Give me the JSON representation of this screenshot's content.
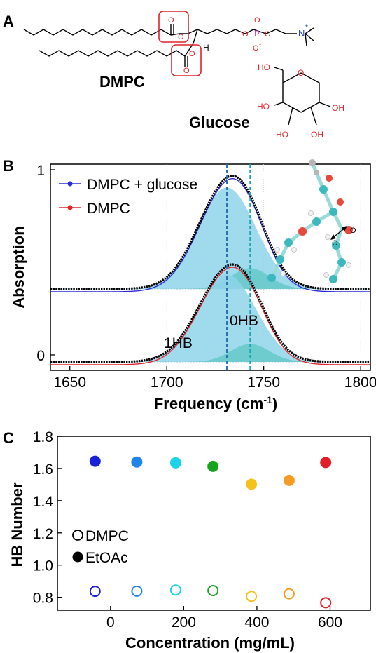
{
  "panels": {
    "a": "A",
    "b": "B",
    "c": "C"
  },
  "molecules": {
    "dmpc_name": "DMPC",
    "glucose_name": "Glucose",
    "h_label": "H",
    "n_label": "N",
    "n_charge": "+",
    "p_label": "P",
    "o_label": "O",
    "o_minus": "O",
    "minus": "-",
    "ho_1": "HO",
    "ho_2": "HO",
    "ho_3": "HO",
    "oh_1": "OH",
    "oh_2": "OH",
    "oh_3": "OH",
    "ring_o": "O",
    "ester_o1": "O",
    "ester_o2": "O",
    "ester_o3": "O",
    "ester_o4": "O"
  },
  "colors": {
    "blue_fit": "#2a2ad6",
    "red_fit": "#e0242a",
    "fill_light": "#8fd3ea",
    "fill_teal": "#45bfb5",
    "dash_blue": "#2a6fb0",
    "dash_teal": "#1fa3b0",
    "ester_box": "#e0242a"
  },
  "chart_data": [
    {
      "type": "line",
      "panel": "B",
      "xlabel_main": "Frequency (cm",
      "xlabel_sup": "-1",
      "xlabel_close": ")",
      "ylabel": "Absorption",
      "xlim": [
        1640,
        1805
      ],
      "x_ticks": [
        1650,
        1700,
        1750,
        1800
      ],
      "y_ticks": [
        0,
        1
      ],
      "series": [
        {
          "name": "DMPC + glucose",
          "color": "#2a2ad6"
        },
        {
          "name": "DMPC",
          "color": "#e0242a"
        }
      ],
      "components": [
        {
          "label": "1HB",
          "center": 1731,
          "width": 15,
          "amplitude": 0.83
        },
        {
          "label": "0HB",
          "center": 1743,
          "width": 10,
          "amplitude": 0.17
        }
      ],
      "dashed_lines": [
        1731,
        1743
      ],
      "grid": true,
      "legend": "top-left"
    },
    {
      "type": "scatter",
      "panel": "C",
      "xlabel": "Concentration (mg/mL)",
      "ylabel": "HB Number",
      "xlim": [
        -145,
        710
      ],
      "ylim": [
        0.72,
        1.8
      ],
      "x_ticks": [
        0,
        200,
        400,
        600
      ],
      "y_ticks": [
        0.8,
        1.0,
        1.2,
        1.4,
        1.6,
        1.8
      ],
      "series": [
        {
          "name": "DMPC",
          "marker": "open",
          "x": [
            -42,
            72,
            178,
            280,
            385,
            488,
            588
          ],
          "y": [
            0.837,
            0.838,
            0.845,
            0.842,
            0.806,
            0.822,
            0.766
          ]
        },
        {
          "name": "EtOAc",
          "marker": "filled",
          "x": [
            -42,
            72,
            178,
            280,
            385,
            488,
            588
          ],
          "y": [
            1.645,
            1.64,
            1.635,
            1.613,
            1.502,
            1.526,
            1.637
          ]
        }
      ],
      "point_colors": [
        "#1a22d8",
        "#1f86e8",
        "#19d4ea",
        "#18a31f",
        "#f4c21a",
        "#f59d22",
        "#e2202a"
      ],
      "legend": "bottom-left"
    }
  ]
}
